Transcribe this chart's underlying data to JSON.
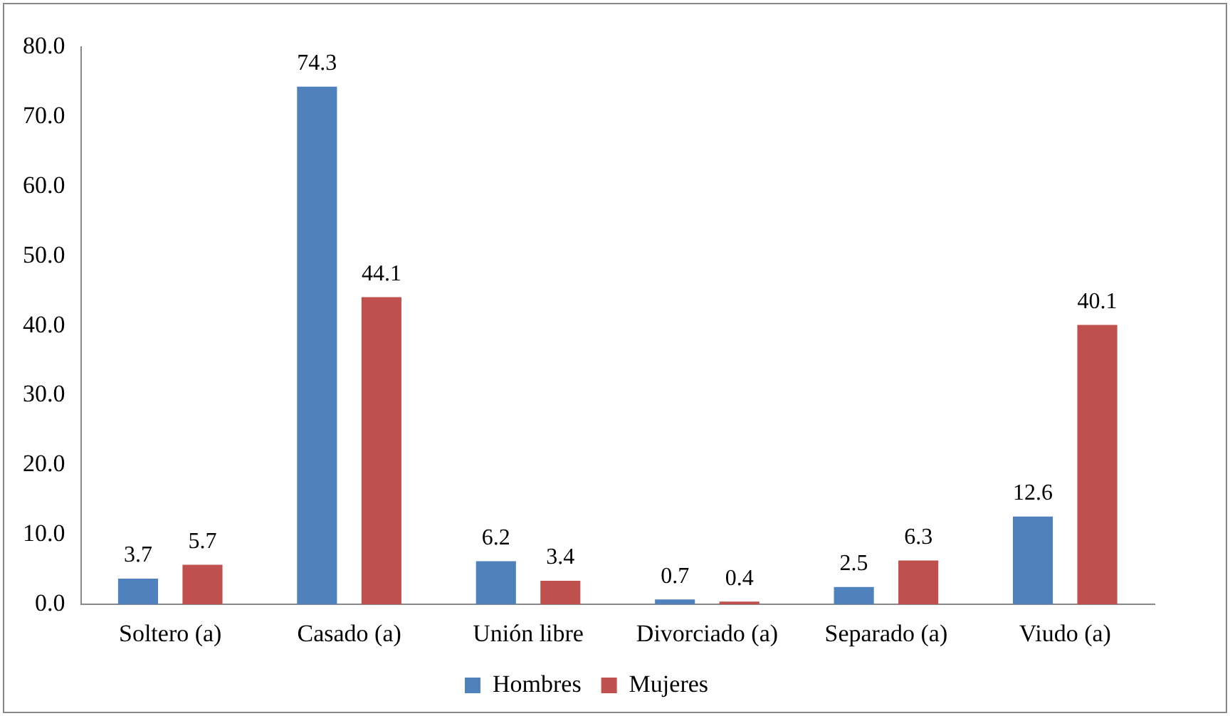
{
  "chart_data": {
    "type": "bar",
    "categories": [
      "Soltero (a)",
      "Casado (a)",
      "Unión libre",
      "Divorciado (a)",
      "Separado (a)",
      "Viudo (a)"
    ],
    "series": [
      {
        "name": "Hombres",
        "color": "#4f81bd",
        "values": [
          3.7,
          74.3,
          6.2,
          0.7,
          2.5,
          12.6
        ]
      },
      {
        "name": "Mujeres",
        "color": "#c0504d",
        "values": [
          5.7,
          44.1,
          3.4,
          0.4,
          6.3,
          40.1
        ]
      }
    ],
    "ylim": [
      0,
      80
    ],
    "yticks": [
      {
        "value": 0,
        "label": "0.0"
      },
      {
        "value": 10,
        "label": "10.0"
      },
      {
        "value": 20,
        "label": "20.0"
      },
      {
        "value": 30,
        "label": "30.0"
      },
      {
        "value": 40,
        "label": "40.0"
      },
      {
        "value": 50,
        "label": "50.0"
      },
      {
        "value": 60,
        "label": "60.0"
      },
      {
        "value": 70,
        "label": "70.0"
      },
      {
        "value": 80,
        "label": "80.0"
      }
    ],
    "grid": false,
    "legend": "bottom",
    "data_labels": true
  }
}
